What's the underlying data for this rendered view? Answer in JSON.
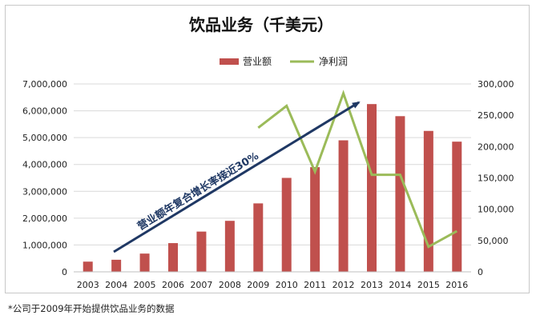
{
  "chart_data": {
    "type": "bar+line",
    "title": "饮品业务（千美元）",
    "legend": [
      "营业额",
      "净利润"
    ],
    "legend_position": "top-right",
    "categories": [
      "2003",
      "2004",
      "2005",
      "2006",
      "2007",
      "2008",
      "2009",
      "2010",
      "2011",
      "2012",
      "2013",
      "2014",
      "2015",
      "2016"
    ],
    "series": [
      {
        "name": "营业额",
        "type": "bar",
        "axis": "left",
        "values": [
          380000,
          450000,
          680000,
          1070000,
          1500000,
          1900000,
          2550000,
          3500000,
          3900000,
          4900000,
          6250000,
          5800000,
          5250000,
          4850000
        ]
      },
      {
        "name": "净利润",
        "type": "line",
        "axis": "right",
        "values": [
          null,
          null,
          null,
          null,
          null,
          null,
          230000,
          265000,
          160000,
          285000,
          155000,
          155000,
          40000,
          65000
        ]
      }
    ],
    "y_left": {
      "min": 0,
      "max": 7000000,
      "ticks": [
        "0",
        "1,000,000",
        "2,000,000",
        "3,000,000",
        "4,000,000",
        "5,000,000",
        "6,000,000",
        "7,000,000"
      ]
    },
    "y_right": {
      "min": 0,
      "max": 300000,
      "ticks": [
        "0",
        "50,000",
        "100,000",
        "150,000",
        "200,000",
        "250,000",
        "300,000"
      ]
    },
    "annotation": "营业额年复合增长率接近30%",
    "colors": {
      "bar": "#c0504d",
      "line": "#9bbb59",
      "arrow": "#1f3864",
      "grid": "#d9d9d9"
    }
  },
  "footnote": "*公司于2009年开始提供饮品业务的数据"
}
